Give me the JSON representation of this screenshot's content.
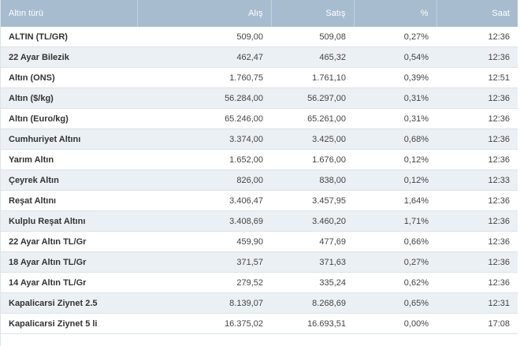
{
  "table": {
    "headers": {
      "name": "Altın türü",
      "buy": "Alış",
      "sell": "Satış",
      "change": "%",
      "time": "Saat"
    },
    "rows": [
      {
        "name": "ALTIN (TL/GR)",
        "buy": "509,00",
        "sell": "509,08",
        "change": "0,27%",
        "time": "12:36"
      },
      {
        "name": "22 Ayar Bilezik",
        "buy": "462,47",
        "sell": "465,32",
        "change": "0,54%",
        "time": "12:36"
      },
      {
        "name": "Altın (ONS)",
        "buy": "1.760,75",
        "sell": "1.761,10",
        "change": "0,39%",
        "time": "12:51"
      },
      {
        "name": "Altın ($/kg)",
        "buy": "56.284,00",
        "sell": "56.297,00",
        "change": "0,31%",
        "time": "12:36"
      },
      {
        "name": "Altın (Euro/kg)",
        "buy": "65.246,00",
        "sell": "65.261,00",
        "change": "0,31%",
        "time": "12:36"
      },
      {
        "name": "Cumhuriyet Altını",
        "buy": "3.374,00",
        "sell": "3.425,00",
        "change": "0,68%",
        "time": "12:36"
      },
      {
        "name": "Yarım Altın",
        "buy": "1.652,00",
        "sell": "1.676,00",
        "change": "0,12%",
        "time": "12:36"
      },
      {
        "name": "Çeyrek Altın",
        "buy": "826,00",
        "sell": "838,00",
        "change": "0,12%",
        "time": "12:33"
      },
      {
        "name": "Reşat Altını",
        "buy": "3.406,47",
        "sell": "3.457,95",
        "change": "1,64%",
        "time": "12:36"
      },
      {
        "name": "Kulplu Reşat Altını",
        "buy": "3.408,69",
        "sell": "3.460,20",
        "change": "1,71%",
        "time": "12:36"
      },
      {
        "name": "22 Ayar Altın TL/Gr",
        "buy": "459,90",
        "sell": "477,69",
        "change": "0,66%",
        "time": "12:36"
      },
      {
        "name": "18 Ayar Altın TL/Gr",
        "buy": "371,57",
        "sell": "371,63",
        "change": "0,27%",
        "time": "12:36"
      },
      {
        "name": "14 Ayar Altın TL/Gr",
        "buy": "279,52",
        "sell": "335,24",
        "change": "0,62%",
        "time": "12:36"
      },
      {
        "name": "Kapalicarsi Ziynet 2.5",
        "buy": "8.139,07",
        "sell": "8.268,69",
        "change": "0,65%",
        "time": "12:31"
      },
      {
        "name": "Kapalicarsi Ziynet 5 li",
        "buy": "16.375,02",
        "sell": "16.693,51",
        "change": "0,00%",
        "time": "17:08"
      }
    ]
  }
}
